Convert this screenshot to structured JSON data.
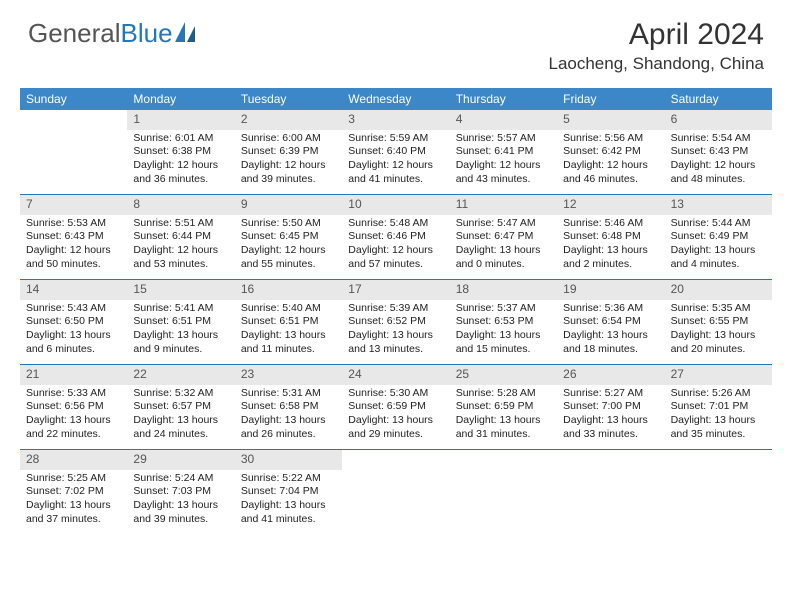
{
  "brand": {
    "part1": "General",
    "part2": "Blue"
  },
  "title": "April 2024",
  "location": "Laocheng, Shandong, China",
  "colors": {
    "header_bg": "#3b87c8",
    "week_divider": "#2577b5",
    "daynum_bg": "#e8e8e8",
    "text": "#222222",
    "background": "#ffffff"
  },
  "days_of_week": [
    "Sunday",
    "Monday",
    "Tuesday",
    "Wednesday",
    "Thursday",
    "Friday",
    "Saturday"
  ],
  "weeks": [
    [
      null,
      {
        "n": "1",
        "sr": "Sunrise: 6:01 AM",
        "ss": "Sunset: 6:38 PM",
        "d1": "Daylight: 12 hours",
        "d2": "and 36 minutes."
      },
      {
        "n": "2",
        "sr": "Sunrise: 6:00 AM",
        "ss": "Sunset: 6:39 PM",
        "d1": "Daylight: 12 hours",
        "d2": "and 39 minutes."
      },
      {
        "n": "3",
        "sr": "Sunrise: 5:59 AM",
        "ss": "Sunset: 6:40 PM",
        "d1": "Daylight: 12 hours",
        "d2": "and 41 minutes."
      },
      {
        "n": "4",
        "sr": "Sunrise: 5:57 AM",
        "ss": "Sunset: 6:41 PM",
        "d1": "Daylight: 12 hours",
        "d2": "and 43 minutes."
      },
      {
        "n": "5",
        "sr": "Sunrise: 5:56 AM",
        "ss": "Sunset: 6:42 PM",
        "d1": "Daylight: 12 hours",
        "d2": "and 46 minutes."
      },
      {
        "n": "6",
        "sr": "Sunrise: 5:54 AM",
        "ss": "Sunset: 6:43 PM",
        "d1": "Daylight: 12 hours",
        "d2": "and 48 minutes."
      }
    ],
    [
      {
        "n": "7",
        "sr": "Sunrise: 5:53 AM",
        "ss": "Sunset: 6:43 PM",
        "d1": "Daylight: 12 hours",
        "d2": "and 50 minutes."
      },
      {
        "n": "8",
        "sr": "Sunrise: 5:51 AM",
        "ss": "Sunset: 6:44 PM",
        "d1": "Daylight: 12 hours",
        "d2": "and 53 minutes."
      },
      {
        "n": "9",
        "sr": "Sunrise: 5:50 AM",
        "ss": "Sunset: 6:45 PM",
        "d1": "Daylight: 12 hours",
        "d2": "and 55 minutes."
      },
      {
        "n": "10",
        "sr": "Sunrise: 5:48 AM",
        "ss": "Sunset: 6:46 PM",
        "d1": "Daylight: 12 hours",
        "d2": "and 57 minutes."
      },
      {
        "n": "11",
        "sr": "Sunrise: 5:47 AM",
        "ss": "Sunset: 6:47 PM",
        "d1": "Daylight: 13 hours",
        "d2": "and 0 minutes."
      },
      {
        "n": "12",
        "sr": "Sunrise: 5:46 AM",
        "ss": "Sunset: 6:48 PM",
        "d1": "Daylight: 13 hours",
        "d2": "and 2 minutes."
      },
      {
        "n": "13",
        "sr": "Sunrise: 5:44 AM",
        "ss": "Sunset: 6:49 PM",
        "d1": "Daylight: 13 hours",
        "d2": "and 4 minutes."
      }
    ],
    [
      {
        "n": "14",
        "sr": "Sunrise: 5:43 AM",
        "ss": "Sunset: 6:50 PM",
        "d1": "Daylight: 13 hours",
        "d2": "and 6 minutes."
      },
      {
        "n": "15",
        "sr": "Sunrise: 5:41 AM",
        "ss": "Sunset: 6:51 PM",
        "d1": "Daylight: 13 hours",
        "d2": "and 9 minutes."
      },
      {
        "n": "16",
        "sr": "Sunrise: 5:40 AM",
        "ss": "Sunset: 6:51 PM",
        "d1": "Daylight: 13 hours",
        "d2": "and 11 minutes."
      },
      {
        "n": "17",
        "sr": "Sunrise: 5:39 AM",
        "ss": "Sunset: 6:52 PM",
        "d1": "Daylight: 13 hours",
        "d2": "and 13 minutes."
      },
      {
        "n": "18",
        "sr": "Sunrise: 5:37 AM",
        "ss": "Sunset: 6:53 PM",
        "d1": "Daylight: 13 hours",
        "d2": "and 15 minutes."
      },
      {
        "n": "19",
        "sr": "Sunrise: 5:36 AM",
        "ss": "Sunset: 6:54 PM",
        "d1": "Daylight: 13 hours",
        "d2": "and 18 minutes."
      },
      {
        "n": "20",
        "sr": "Sunrise: 5:35 AM",
        "ss": "Sunset: 6:55 PM",
        "d1": "Daylight: 13 hours",
        "d2": "and 20 minutes."
      }
    ],
    [
      {
        "n": "21",
        "sr": "Sunrise: 5:33 AM",
        "ss": "Sunset: 6:56 PM",
        "d1": "Daylight: 13 hours",
        "d2": "and 22 minutes."
      },
      {
        "n": "22",
        "sr": "Sunrise: 5:32 AM",
        "ss": "Sunset: 6:57 PM",
        "d1": "Daylight: 13 hours",
        "d2": "and 24 minutes."
      },
      {
        "n": "23",
        "sr": "Sunrise: 5:31 AM",
        "ss": "Sunset: 6:58 PM",
        "d1": "Daylight: 13 hours",
        "d2": "and 26 minutes."
      },
      {
        "n": "24",
        "sr": "Sunrise: 5:30 AM",
        "ss": "Sunset: 6:59 PM",
        "d1": "Daylight: 13 hours",
        "d2": "and 29 minutes."
      },
      {
        "n": "25",
        "sr": "Sunrise: 5:28 AM",
        "ss": "Sunset: 6:59 PM",
        "d1": "Daylight: 13 hours",
        "d2": "and 31 minutes."
      },
      {
        "n": "26",
        "sr": "Sunrise: 5:27 AM",
        "ss": "Sunset: 7:00 PM",
        "d1": "Daylight: 13 hours",
        "d2": "and 33 minutes."
      },
      {
        "n": "27",
        "sr": "Sunrise: 5:26 AM",
        "ss": "Sunset: 7:01 PM",
        "d1": "Daylight: 13 hours",
        "d2": "and 35 minutes."
      }
    ],
    [
      {
        "n": "28",
        "sr": "Sunrise: 5:25 AM",
        "ss": "Sunset: 7:02 PM",
        "d1": "Daylight: 13 hours",
        "d2": "and 37 minutes."
      },
      {
        "n": "29",
        "sr": "Sunrise: 5:24 AM",
        "ss": "Sunset: 7:03 PM",
        "d1": "Daylight: 13 hours",
        "d2": "and 39 minutes."
      },
      {
        "n": "30",
        "sr": "Sunrise: 5:22 AM",
        "ss": "Sunset: 7:04 PM",
        "d1": "Daylight: 13 hours",
        "d2": "and 41 minutes."
      },
      null,
      null,
      null,
      null
    ]
  ]
}
